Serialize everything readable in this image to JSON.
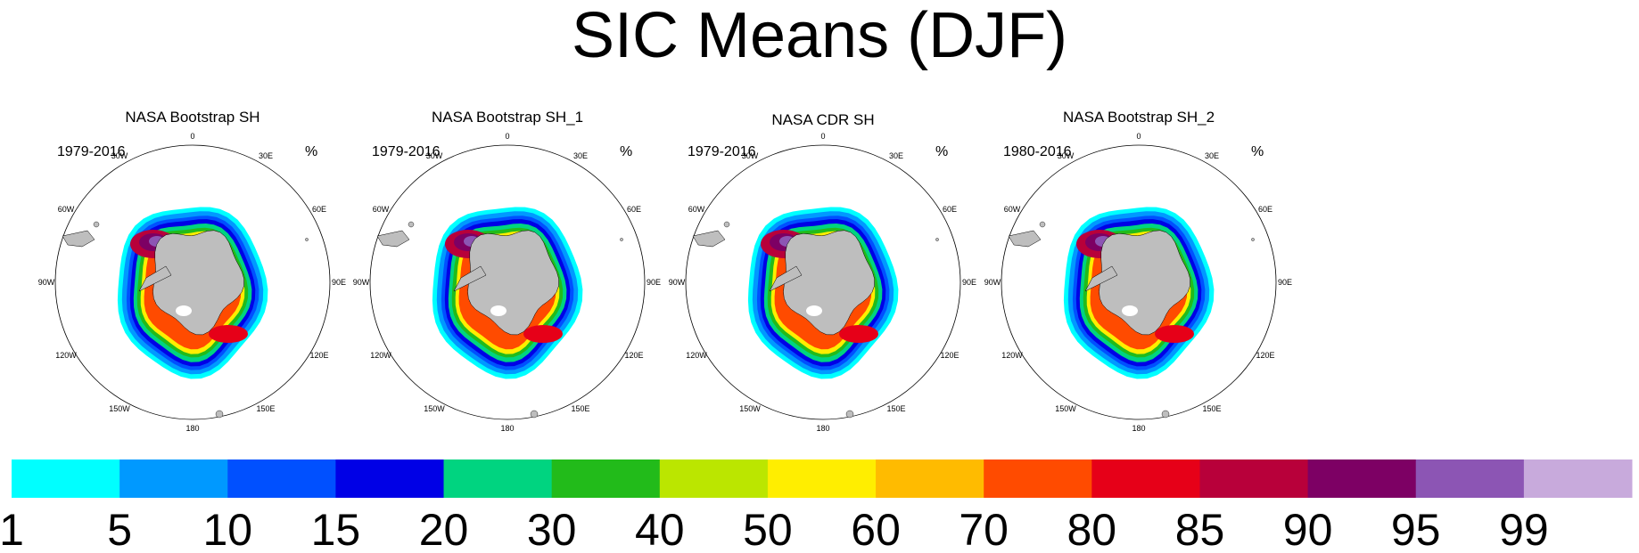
{
  "chart_data": {
    "type": "polar-map",
    "title": "SIC Means (DJF)",
    "panels": [
      {
        "name": "NASA Bootstrap SH",
        "period": "1979-2016",
        "units": "%"
      },
      {
        "name": "NASA Bootstrap SH_1",
        "period": "1979-2016",
        "units": "%"
      },
      {
        "name": "NASA CDR SH",
        "period": "1979-2016",
        "units": "%"
      },
      {
        "name": "NASA Bootstrap SH_2",
        "period": "1980-2016",
        "units": "%"
      }
    ],
    "longitude_labels": [
      "0",
      "30E",
      "60E",
      "90E",
      "120E",
      "150E",
      "180",
      "150W",
      "120W",
      "90W",
      "60W",
      "30W"
    ],
    "colorbar": {
      "levels": [
        "1",
        "5",
        "10",
        "15",
        "20",
        "30",
        "40",
        "50",
        "60",
        "70",
        "80",
        "85",
        "90",
        "95",
        "99"
      ],
      "colors": [
        "#00ffff",
        "#0099ff",
        "#0050ff",
        "#0000e6",
        "#00d480",
        "#22bb1a",
        "#bbe600",
        "#ffee00",
        "#ffbb00",
        "#ff4b00",
        "#e60018",
        "#b8003a",
        "#7d0064",
        "#8c55b4",
        "#c8aadc"
      ]
    },
    "land_color": "#bebebe"
  }
}
